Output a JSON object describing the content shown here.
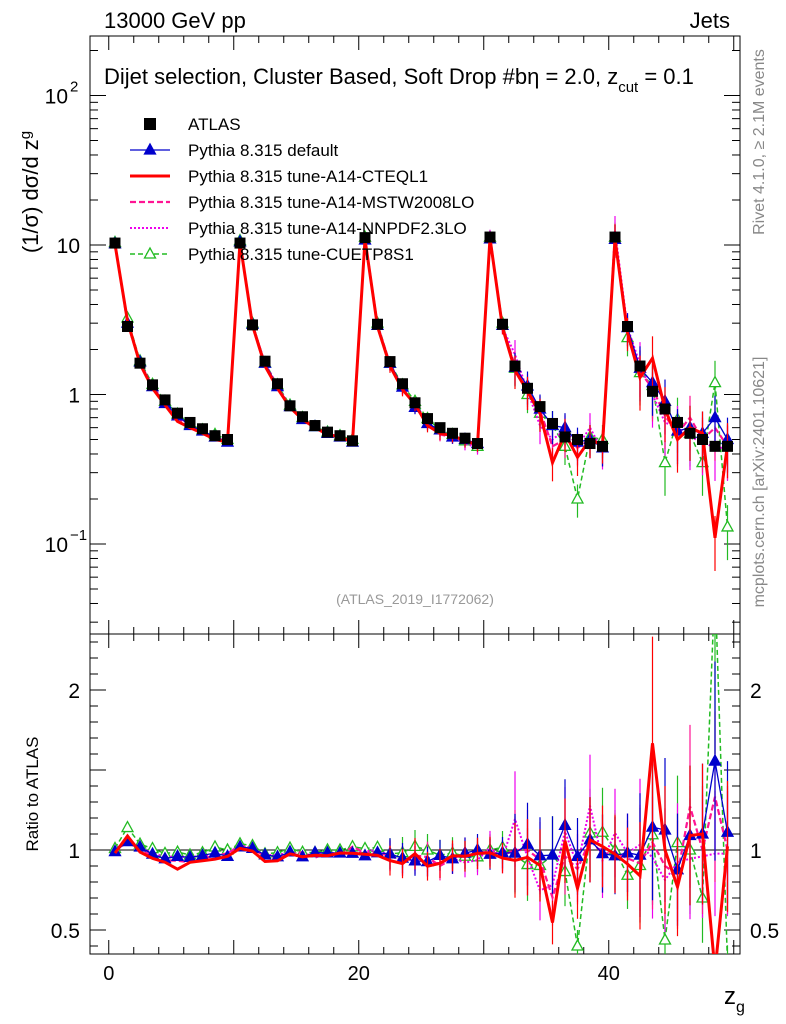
{
  "header": {
    "left": "13000 GeV pp",
    "right": "Jets"
  },
  "side_labels": {
    "rivet": "Rivet 4.1.0, ≥ 2.1M events",
    "mcplots": "mcplots.cern.ch [arXiv:2401.10621]"
  },
  "chart_data": {
    "type": "line",
    "title": "Dijet selection, Cluster Based, Soft Drop #b",
    "title_rest": "η = 2.0, z",
    "title_sub": "cut",
    "title_end": " = 0.1",
    "analysis_id": "(ATLAS_2019_I1772062)",
    "xlabel": "z",
    "xlabel_sub": "g",
    "ylabel": "(1/σ) dσ/d z",
    "ylabel_sub": "g",
    "ratio_ylabel": "Ratio to ATLAS",
    "scale": "log",
    "xlim": [
      -1.5,
      50.5
    ],
    "ylim": [
      0.025,
      250
    ],
    "ratio_ylim": [
      0.35,
      2.35
    ],
    "x_ticks": [
      "0",
      "20",
      "40"
    ],
    "y_ticks": [
      "10^-1",
      "1",
      "10",
      "10^2"
    ],
    "ratio_ticks": [
      "0.5",
      "1",
      "2"
    ],
    "legend": [
      {
        "key": "atlas",
        "label": "ATLAS",
        "color": "#000000",
        "style": "marker"
      },
      {
        "key": "default",
        "label": "Pythia 8.315 default",
        "color": "#0000cc",
        "style": "solid-thin"
      },
      {
        "key": "cteql1",
        "label": "Pythia 8.315 tune-A14-CTEQL1",
        "color": "#ff0000",
        "style": "solid"
      },
      {
        "key": "mstw",
        "label": "Pythia 8.315 tune-A14-MSTW2008LO",
        "color": "#ff1493",
        "style": "dashed"
      },
      {
        "key": "nnpdf",
        "label": "Pythia 8.315 tune-A14-NNPDF2.3LO",
        "color": "#ee00ee",
        "style": "dotted"
      },
      {
        "key": "cuetp",
        "label": "Pythia 8.315 tune-CUETP8S1",
        "color": "#22bb22",
        "style": "dashed-triangle"
      }
    ],
    "x": [
      0.5,
      1.5,
      2.5,
      3.5,
      4.5,
      5.5,
      6.5,
      7.5,
      8.5,
      9.5,
      10.5,
      11.5,
      12.5,
      13.5,
      14.5,
      15.5,
      16.5,
      17.5,
      18.5,
      19.5,
      20.5,
      21.5,
      22.5,
      23.5,
      24.5,
      25.5,
      26.5,
      27.5,
      28.5,
      29.5,
      30.5,
      31.5,
      32.5,
      33.5,
      34.5,
      35.5,
      36.5,
      37.5,
      38.5,
      39.5,
      40.5,
      41.5,
      42.5,
      43.5,
      44.5,
      45.5,
      46.5,
      47.5,
      48.5,
      49.5
    ],
    "data_values": [
      10.3,
      2.85,
      1.62,
      1.16,
      0.92,
      0.75,
      0.65,
      0.59,
      0.53,
      0.5,
      10.3,
      2.92,
      1.67,
      1.18,
      0.84,
      0.71,
      0.62,
      0.56,
      0.53,
      0.49,
      11.2,
      2.95,
      1.66,
      1.18,
      0.88,
      0.69,
      0.6,
      0.55,
      0.51,
      0.47,
      11.3,
      2.95,
      1.55,
      1.1,
      0.83,
      0.64,
      0.52,
      0.5,
      0.47,
      0.45,
      11.3,
      2.85,
      1.55,
      1.05,
      0.8,
      0.65,
      0.55,
      0.5,
      0.45,
      0.45
    ],
    "series": [
      {
        "name": "Pythia 8.315 default",
        "values": [
          10.2,
          3.0,
          1.65,
          1.13,
          0.87,
          0.72,
          0.62,
          0.57,
          0.52,
          0.48,
          10.5,
          2.95,
          1.62,
          1.13,
          0.83,
          0.68,
          0.61,
          0.55,
          0.52,
          0.48,
          10.8,
          2.9,
          1.62,
          1.12,
          0.82,
          0.64,
          0.58,
          0.52,
          0.5,
          0.47,
          11.0,
          2.9,
          1.52,
          1.14,
          0.8,
          0.62,
          0.6,
          0.48,
          0.5,
          0.44,
          10.9,
          2.8,
          1.5,
          1.2,
          0.9,
          0.57,
          0.6,
          0.55,
          0.7,
          0.5
        ]
      },
      {
        "name": "Pythia 8.315 tune-A14-CTEQL1",
        "values": [
          10.1,
          3.1,
          1.6,
          1.1,
          0.85,
          0.66,
          0.6,
          0.55,
          0.5,
          0.48,
          10.4,
          2.9,
          1.55,
          1.1,
          0.82,
          0.68,
          0.6,
          0.54,
          0.52,
          0.48,
          10.9,
          2.85,
          1.55,
          1.08,
          0.86,
          0.62,
          0.55,
          0.53,
          0.49,
          0.46,
          11.1,
          2.8,
          1.45,
          1.05,
          0.75,
          0.35,
          0.55,
          0.38,
          0.5,
          0.46,
          11.0,
          2.6,
          1.3,
          1.75,
          0.8,
          0.5,
          0.6,
          0.55,
          0.11,
          0.46
        ]
      },
      {
        "name": "Pythia 8.315 tune-A14-MSTW2008LO",
        "values": [
          10.2,
          3.0,
          1.62,
          1.12,
          0.86,
          0.7,
          0.6,
          0.56,
          0.51,
          0.49,
          10.5,
          2.95,
          1.6,
          1.12,
          0.82,
          0.7,
          0.59,
          0.55,
          0.51,
          0.5,
          11.0,
          2.9,
          1.6,
          1.1,
          0.85,
          0.66,
          0.54,
          0.52,
          0.5,
          0.46,
          11.2,
          2.85,
          1.55,
          1.1,
          0.78,
          0.45,
          0.5,
          0.44,
          0.5,
          0.44,
          11.1,
          2.7,
          1.42,
          1.1,
          0.72,
          0.55,
          0.7,
          0.5,
          0.6,
          0.45
        ]
      },
      {
        "name": "Pythia 8.315 tune-A14-NNPDF2.3LO",
        "values": [
          10.3,
          3.05,
          1.64,
          1.14,
          0.88,
          0.72,
          0.62,
          0.57,
          0.51,
          0.49,
          10.6,
          2.95,
          1.62,
          1.14,
          0.83,
          0.68,
          0.6,
          0.55,
          0.52,
          0.48,
          11.1,
          2.95,
          1.6,
          1.1,
          0.83,
          0.64,
          0.55,
          0.52,
          0.47,
          0.44,
          11.5,
          2.8,
          1.85,
          1.05,
          0.62,
          0.5,
          0.58,
          0.45,
          0.6,
          0.42,
          12.5,
          2.8,
          1.6,
          1.0,
          0.65,
          0.6,
          0.52,
          0.48,
          0.44,
          0.44
        ]
      },
      {
        "name": "Pythia 8.315 tune-CUETP8S1",
        "values": [
          10.4,
          3.25,
          1.68,
          1.17,
          0.9,
          0.74,
          0.63,
          0.58,
          0.54,
          0.5,
          10.7,
          3.0,
          1.63,
          1.16,
          0.85,
          0.7,
          0.61,
          0.56,
          0.53,
          0.5,
          11.3,
          3.0,
          1.62,
          1.16,
          0.9,
          0.69,
          0.58,
          0.54,
          0.49,
          0.45,
          11.3,
          3.0,
          1.5,
          1.0,
          0.75,
          0.62,
          0.45,
          0.2,
          0.52,
          0.5,
          11.3,
          2.4,
          1.4,
          1.15,
          0.35,
          0.68,
          0.55,
          0.35,
          1.2,
          0.13
        ]
      }
    ]
  }
}
